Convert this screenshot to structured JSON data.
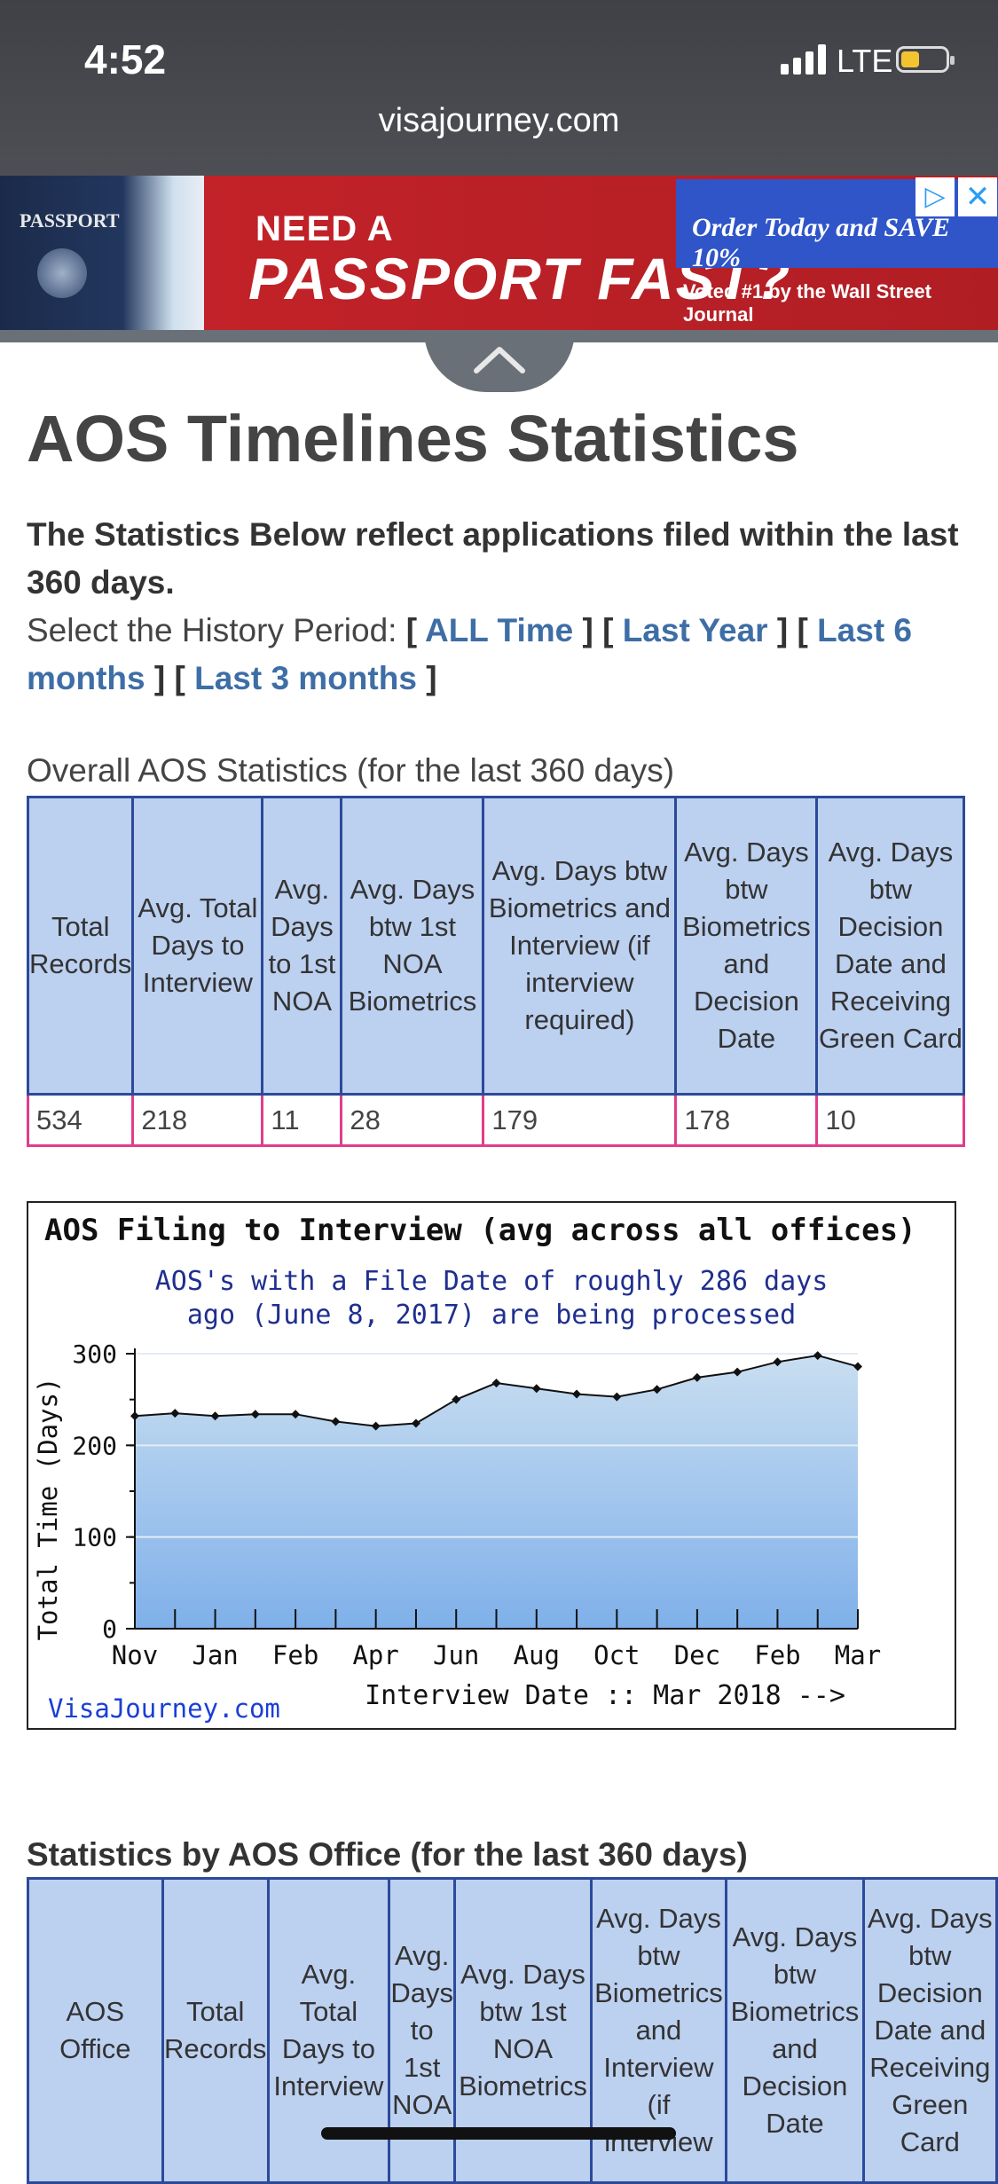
{
  "status_bar": {
    "time": "4:52",
    "network": "LTE"
  },
  "browser": {
    "url": "visajourney.com"
  },
  "ad": {
    "passport_label": "PASSPORT",
    "headline_small": "NEED A",
    "headline_large": "PASSPORT FAST?",
    "order_text": "Order Today and SAVE 10%",
    "voted_text": "Voted #1 by the Wall Street Journal"
  },
  "page": {
    "title": "AOS Timelines Statistics",
    "intro": "The Statistics Below reflect applications filed within the last 360 days.",
    "history_label": "Select the History Period:",
    "history_links": [
      "ALL Time",
      "Last Year",
      "Last 6 months",
      "Last 3 months"
    ],
    "overall_caption": "Overall AOS Statistics (for the last 360 days)"
  },
  "overall_table": {
    "headers": [
      "Total Records",
      "Avg. Total Days to Interview",
      "Avg. Days to 1st NOA",
      "Avg. Days btw 1st NOA Biometrics",
      "Avg. Days btw Biometrics and Interview (if interview required)",
      "Avg. Days btw Biometrics and Decision Date",
      "Avg. Days btw Decision Date and Receiving Green Card"
    ],
    "values": [
      "534",
      "218",
      "11",
      "28",
      "179",
      "178",
      "10"
    ]
  },
  "chart_data": {
    "type": "area",
    "title": "AOS Filing to Interview (avg across all offices)",
    "subtitle": [
      "AOS's with a File Date of roughly 286 days",
      "ago (June 8, 2017) are being processed"
    ],
    "ylabel": "Total Time (Days)",
    "xlabel": "Interview Date :: Mar 2018 -->",
    "credit": "VisaJourney.com",
    "ylim": [
      0,
      300
    ],
    "yticks": [
      0,
      100,
      200,
      300
    ],
    "xtick_labels": [
      "Nov",
      "Jan",
      "Feb",
      "Apr",
      "Jun",
      "Aug",
      "Oct",
      "Dec",
      "Feb",
      "Mar"
    ],
    "values": [
      232,
      235,
      232,
      234,
      234,
      226,
      221,
      224,
      250,
      268,
      262,
      256,
      253,
      261,
      274,
      280,
      291,
      298,
      286
    ],
    "grid": true,
    "colors": {
      "fill_top": "#c9def0",
      "fill_bottom": "#7fb0ea",
      "line": "#111111",
      "title": "#111111",
      "subtitle": "#1f2f8f",
      "credit": "#1a3fd6"
    }
  },
  "office_section": {
    "caption": "Statistics by AOS Office (for the last 360 days)",
    "headers": [
      "AOS Office",
      "Total Records",
      "Avg. Total Days to Interview",
      "Avg. Days to 1st NOA",
      "Avg. Days btw 1st NOA Biometrics",
      "Avg. Days btw Biometrics and Interview (if interview",
      "Avg. Days btw Biometrics and Decision Date",
      "Avg. Days btw Decision Date and Receiving Green Card"
    ]
  }
}
